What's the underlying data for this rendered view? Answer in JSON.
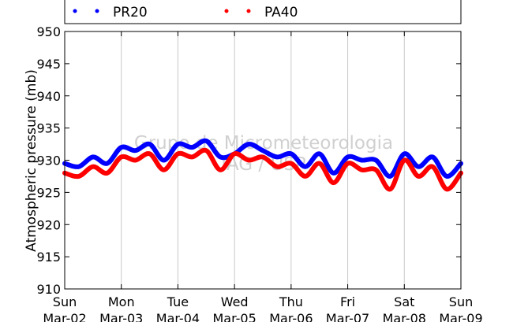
{
  "chart_data": {
    "type": "line",
    "title": "",
    "xlabel": "",
    "ylabel": "Atmospheric pressure (mb)",
    "ylim": [
      910,
      950
    ],
    "yticks": [
      910,
      915,
      920,
      925,
      930,
      935,
      940,
      945,
      950
    ],
    "xlim": [
      "2014-03-02",
      "2014-03-09"
    ],
    "xticks": [
      {
        "date": "2014-03-02",
        "day": "Sun",
        "label": "Mar-02"
      },
      {
        "date": "2014-03-03",
        "day": "Mon",
        "label": "Mar-03"
      },
      {
        "date": "2014-03-04",
        "day": "Tue",
        "label": "Mar-04"
      },
      {
        "date": "2014-03-05",
        "day": "Wed",
        "label": "Mar-05"
      },
      {
        "date": "2014-03-06",
        "day": "Thu",
        "label": "Mar-06"
      },
      {
        "date": "2014-03-07",
        "day": "Fri",
        "label": "Mar-07"
      },
      {
        "date": "2014-03-08",
        "day": "Sat",
        "label": "Mar-08"
      },
      {
        "date": "2014-03-09",
        "day": "Sun",
        "label": "Mar-09"
      }
    ],
    "grid": "vertical",
    "legend": "top",
    "watermark": [
      "Grupo de Micrometeorologia",
      "IAG / USP"
    ],
    "series": [
      {
        "name": "PR20",
        "color": "#0000ff",
        "x": [
          "2014-03-02 00:00",
          "2014-03-02 06:00",
          "2014-03-02 12:00",
          "2014-03-02 18:00",
          "2014-03-03 00:00",
          "2014-03-03 06:00",
          "2014-03-03 12:00",
          "2014-03-03 18:00",
          "2014-03-04 00:00",
          "2014-03-04 06:00",
          "2014-03-04 12:00",
          "2014-03-04 18:00",
          "2014-03-05 00:00",
          "2014-03-05 06:00",
          "2014-03-05 12:00",
          "2014-03-05 18:00",
          "2014-03-06 00:00",
          "2014-03-06 06:00",
          "2014-03-06 12:00",
          "2014-03-06 18:00",
          "2014-03-07 00:00",
          "2014-03-07 06:00",
          "2014-03-07 12:00",
          "2014-03-07 18:00",
          "2014-03-08 00:00",
          "2014-03-08 06:00",
          "2014-03-08 12:00",
          "2014-03-08 18:00",
          "2014-03-09 00:00"
        ],
        "values": [
          929.5,
          929.0,
          930.5,
          929.5,
          932.0,
          931.5,
          932.5,
          930.0,
          932.5,
          932.0,
          933.0,
          930.5,
          931.0,
          932.5,
          931.5,
          930.5,
          931.0,
          929.0,
          931.0,
          928.0,
          930.5,
          930.0,
          930.0,
          927.5,
          931.0,
          929.0,
          930.5,
          927.5,
          929.5
        ]
      },
      {
        "name": "PA40",
        "color": "#ff0000",
        "x": [
          "2014-03-02 00:00",
          "2014-03-02 06:00",
          "2014-03-02 12:00",
          "2014-03-02 18:00",
          "2014-03-03 00:00",
          "2014-03-03 06:00",
          "2014-03-03 12:00",
          "2014-03-03 18:00",
          "2014-03-04 00:00",
          "2014-03-04 06:00",
          "2014-03-04 12:00",
          "2014-03-04 18:00",
          "2014-03-05 00:00",
          "2014-03-05 06:00",
          "2014-03-05 12:00",
          "2014-03-05 18:00",
          "2014-03-06 00:00",
          "2014-03-06 06:00",
          "2014-03-06 12:00",
          "2014-03-06 18:00",
          "2014-03-07 00:00",
          "2014-03-07 06:00",
          "2014-03-07 12:00",
          "2014-03-07 18:00",
          "2014-03-08 00:00",
          "2014-03-08 06:00",
          "2014-03-08 12:00",
          "2014-03-08 18:00",
          "2014-03-09 00:00"
        ],
        "values": [
          928.0,
          927.5,
          929.0,
          928.0,
          930.5,
          930.0,
          931.0,
          928.5,
          931.0,
          930.5,
          931.5,
          928.5,
          931.0,
          930.0,
          930.5,
          929.0,
          929.5,
          927.5,
          929.5,
          926.5,
          929.5,
          928.5,
          928.5,
          925.5,
          930.0,
          927.5,
          929.0,
          925.5,
          928.0
        ]
      }
    ]
  }
}
